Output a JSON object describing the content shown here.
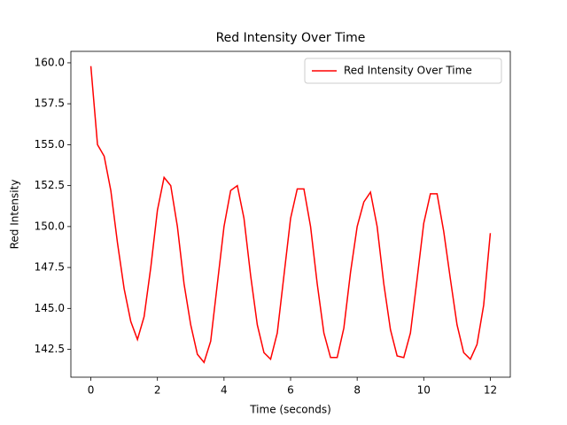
{
  "chart_data": {
    "type": "line",
    "title": "Red Intensity Over Time",
    "x_label": "Time (seconds)",
    "y_label": "Red Intensity",
    "x": [
      0,
      0.2,
      0.4,
      0.6,
      0.8,
      1.0,
      1.2,
      1.4,
      1.6,
      1.8,
      2.0,
      2.2,
      2.4,
      2.6,
      2.8,
      3.0,
      3.2,
      3.4,
      3.6,
      3.8,
      4.0,
      4.2,
      4.4,
      4.6,
      4.8,
      5.0,
      5.2,
      5.4,
      5.6,
      5.8,
      6.0,
      6.2,
      6.4,
      6.6,
      6.8,
      7.0,
      7.2,
      7.4,
      7.6,
      7.8,
      8.0,
      8.2,
      8.4,
      8.6,
      8.8,
      9.0,
      9.2,
      9.4,
      9.6,
      9.8,
      10.0,
      10.2,
      10.4,
      10.6,
      10.8,
      11.0,
      11.2,
      11.4,
      11.6,
      11.8,
      12.0
    ],
    "series": [
      {
        "name": "Red Intensity Over Time",
        "color": "#ff0000",
        "values": [
          159.8,
          155.0,
          154.3,
          152.2,
          149.0,
          146.2,
          144.2,
          143.1,
          144.5,
          147.5,
          151.0,
          153.0,
          152.5,
          150.0,
          146.5,
          144.0,
          142.2,
          141.7,
          143.0,
          146.5,
          150.0,
          152.2,
          152.5,
          150.5,
          147.0,
          144.0,
          142.3,
          141.9,
          143.5,
          147.0,
          150.5,
          152.3,
          152.3,
          150.0,
          146.5,
          143.5,
          142.0,
          142.0,
          143.8,
          147.2,
          150.0,
          151.5,
          152.1,
          150.0,
          146.5,
          143.7,
          142.1,
          142.0,
          143.5,
          146.8,
          150.2,
          152.0,
          152.0,
          149.7,
          146.8,
          144.0,
          142.3,
          141.9,
          142.8,
          145.2,
          149.6
        ]
      }
    ],
    "xlim": [
      -0.6,
      12.6
    ],
    "ylim": [
      140.8,
      160.7
    ],
    "xticks": [
      0,
      2,
      4,
      6,
      8,
      10,
      12
    ],
    "yticks": [
      142.5,
      {
        "value": 145,
        "label": "145.0"
      },
      147.5,
      {
        "value": 150,
        "label": "150.0"
      },
      152.5,
      {
        "value": 155,
        "label": "155.0"
      },
      157.5,
      {
        "value": 160,
        "label": "160.0"
      }
    ],
    "legend": "upper right"
  }
}
